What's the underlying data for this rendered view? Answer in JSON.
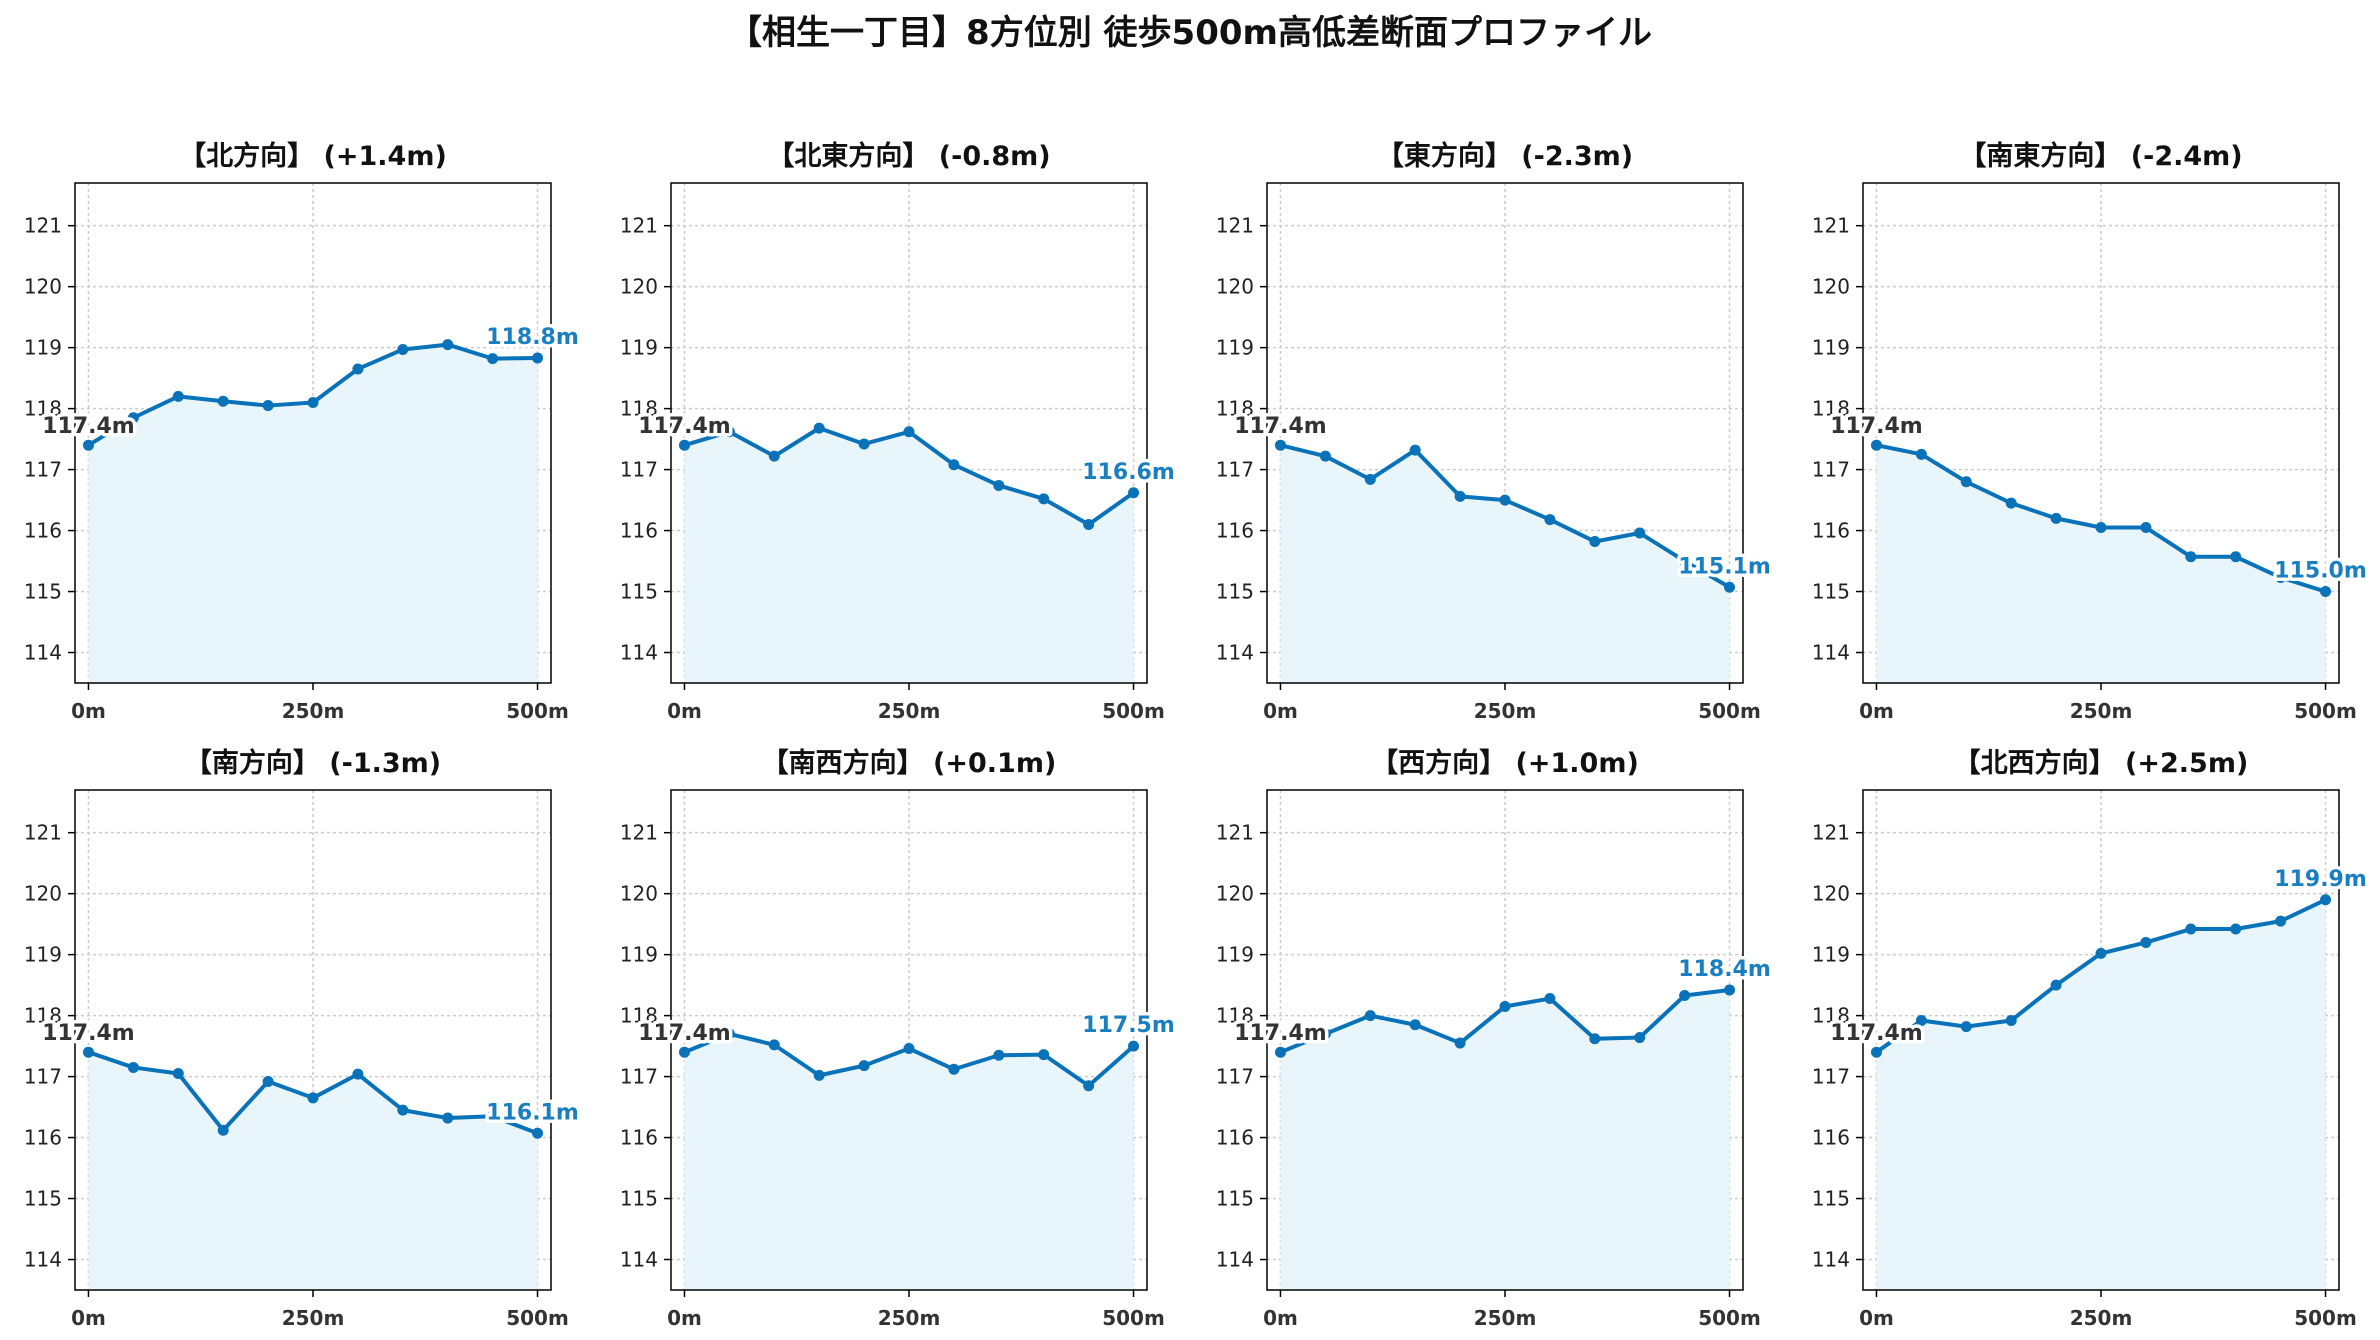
{
  "title": "【相生一丁目】8方位別 徒歩500m高低差断面プロファイル",
  "colors": {
    "line": "#0a72b8",
    "fill": "#e8f6fb",
    "start_label": "#333333",
    "end_label": "#1a7fc1",
    "grid": "#cccccc",
    "axis": "#000000"
  },
  "chart_data": [
    {
      "type": "area",
      "title": "【北方向】 (+1.4m)",
      "x": [
        0,
        50,
        100,
        150,
        200,
        250,
        300,
        350,
        400,
        450,
        500
      ],
      "values": [
        117.4,
        117.85,
        118.2,
        118.12,
        118.05,
        118.1,
        118.65,
        118.97,
        119.05,
        118.82,
        118.83
      ],
      "start_label": "117.4m",
      "end_label": "118.8m",
      "xlim": [
        -15,
        515
      ],
      "ylim": [
        113.5,
        121.7
      ],
      "yticks": [
        "114",
        "115",
        "116",
        "117",
        "118",
        "119",
        "120",
        "121"
      ],
      "xticks": [
        "0m",
        "250m",
        "500m"
      ],
      "grid": true
    },
    {
      "type": "area",
      "title": "【北東方向】 (-0.8m)",
      "x": [
        0,
        50,
        100,
        150,
        200,
        250,
        300,
        350,
        400,
        450,
        500
      ],
      "values": [
        117.4,
        117.62,
        117.22,
        117.68,
        117.42,
        117.62,
        117.08,
        116.74,
        116.52,
        116.1,
        116.62
      ],
      "start_label": "117.4m",
      "end_label": "116.6m",
      "xlim": [
        -15,
        515
      ],
      "ylim": [
        113.5,
        121.7
      ],
      "yticks": [
        "114",
        "115",
        "116",
        "117",
        "118",
        "119",
        "120",
        "121"
      ],
      "xticks": [
        "0m",
        "250m",
        "500m"
      ],
      "grid": true
    },
    {
      "type": "area",
      "title": "【東方向】 (-2.3m)",
      "x": [
        0,
        50,
        100,
        150,
        200,
        250,
        300,
        350,
        400,
        450,
        500
      ],
      "values": [
        117.4,
        117.22,
        116.84,
        117.32,
        116.56,
        116.5,
        116.18,
        115.82,
        115.96,
        115.5,
        115.07
      ],
      "start_label": "117.4m",
      "end_label": "115.1m",
      "xlim": [
        -15,
        515
      ],
      "ylim": [
        113.5,
        121.7
      ],
      "yticks": [
        "114",
        "115",
        "116",
        "117",
        "118",
        "119",
        "120",
        "121"
      ],
      "xticks": [
        "0m",
        "250m",
        "500m"
      ],
      "grid": true
    },
    {
      "type": "area",
      "title": "【南東方向】 (-2.4m)",
      "x": [
        0,
        50,
        100,
        150,
        200,
        250,
        300,
        350,
        400,
        450,
        500
      ],
      "values": [
        117.4,
        117.25,
        116.8,
        116.45,
        116.2,
        116.05,
        116.05,
        115.57,
        115.57,
        115.23,
        115.0
      ],
      "start_label": "117.4m",
      "end_label": "115.0m",
      "xlim": [
        -15,
        515
      ],
      "ylim": [
        113.5,
        121.7
      ],
      "yticks": [
        "114",
        "115",
        "116",
        "117",
        "118",
        "119",
        "120",
        "121"
      ],
      "xticks": [
        "0m",
        "250m",
        "500m"
      ],
      "grid": true
    },
    {
      "type": "area",
      "title": "【南方向】 (-1.3m)",
      "x": [
        0,
        50,
        100,
        150,
        200,
        250,
        300,
        350,
        400,
        450,
        500
      ],
      "values": [
        117.4,
        117.15,
        117.05,
        116.12,
        116.92,
        116.65,
        117.04,
        116.45,
        116.32,
        116.35,
        116.07
      ],
      "start_label": "117.4m",
      "end_label": "116.1m",
      "xlim": [
        -15,
        515
      ],
      "ylim": [
        113.5,
        121.7
      ],
      "yticks": [
        "114",
        "115",
        "116",
        "117",
        "118",
        "119",
        "120",
        "121"
      ],
      "xticks": [
        "0m",
        "250m",
        "500m"
      ],
      "grid": true
    },
    {
      "type": "area",
      "title": "【南西方向】 (+0.1m)",
      "x": [
        0,
        50,
        100,
        150,
        200,
        250,
        300,
        350,
        400,
        450,
        500
      ],
      "values": [
        117.4,
        117.7,
        117.52,
        117.02,
        117.18,
        117.46,
        117.12,
        117.35,
        117.36,
        116.85,
        117.5
      ],
      "start_label": "117.4m",
      "end_label": "117.5m",
      "xlim": [
        -15,
        515
      ],
      "ylim": [
        113.5,
        121.7
      ],
      "yticks": [
        "114",
        "115",
        "116",
        "117",
        "118",
        "119",
        "120",
        "121"
      ],
      "xticks": [
        "0m",
        "250m",
        "500m"
      ],
      "grid": true
    },
    {
      "type": "area",
      "title": "【西方向】 (+1.0m)",
      "x": [
        0,
        50,
        100,
        150,
        200,
        250,
        300,
        350,
        400,
        450,
        500
      ],
      "values": [
        117.4,
        117.7,
        118.0,
        117.85,
        117.55,
        118.15,
        118.28,
        117.62,
        117.64,
        118.33,
        118.42
      ],
      "start_label": "117.4m",
      "end_label": "118.4m",
      "xlim": [
        -15,
        515
      ],
      "ylim": [
        113.5,
        121.7
      ],
      "yticks": [
        "114",
        "115",
        "116",
        "117",
        "118",
        "119",
        "120",
        "121"
      ],
      "xticks": [
        "0m",
        "250m",
        "500m"
      ],
      "grid": true
    },
    {
      "type": "area",
      "title": "【北西方向】 (+2.5m)",
      "x": [
        0,
        50,
        100,
        150,
        200,
        250,
        300,
        350,
        400,
        450,
        500
      ],
      "values": [
        117.4,
        117.92,
        117.82,
        117.92,
        118.5,
        119.02,
        119.2,
        119.42,
        119.42,
        119.55,
        119.9
      ],
      "start_label": "117.4m",
      "end_label": "119.9m",
      "xlim": [
        -15,
        515
      ],
      "ylim": [
        113.5,
        121.7
      ],
      "yticks": [
        "114",
        "115",
        "116",
        "117",
        "118",
        "119",
        "120",
        "121"
      ],
      "xticks": [
        "0m",
        "250m",
        "500m"
      ],
      "grid": true
    }
  ]
}
